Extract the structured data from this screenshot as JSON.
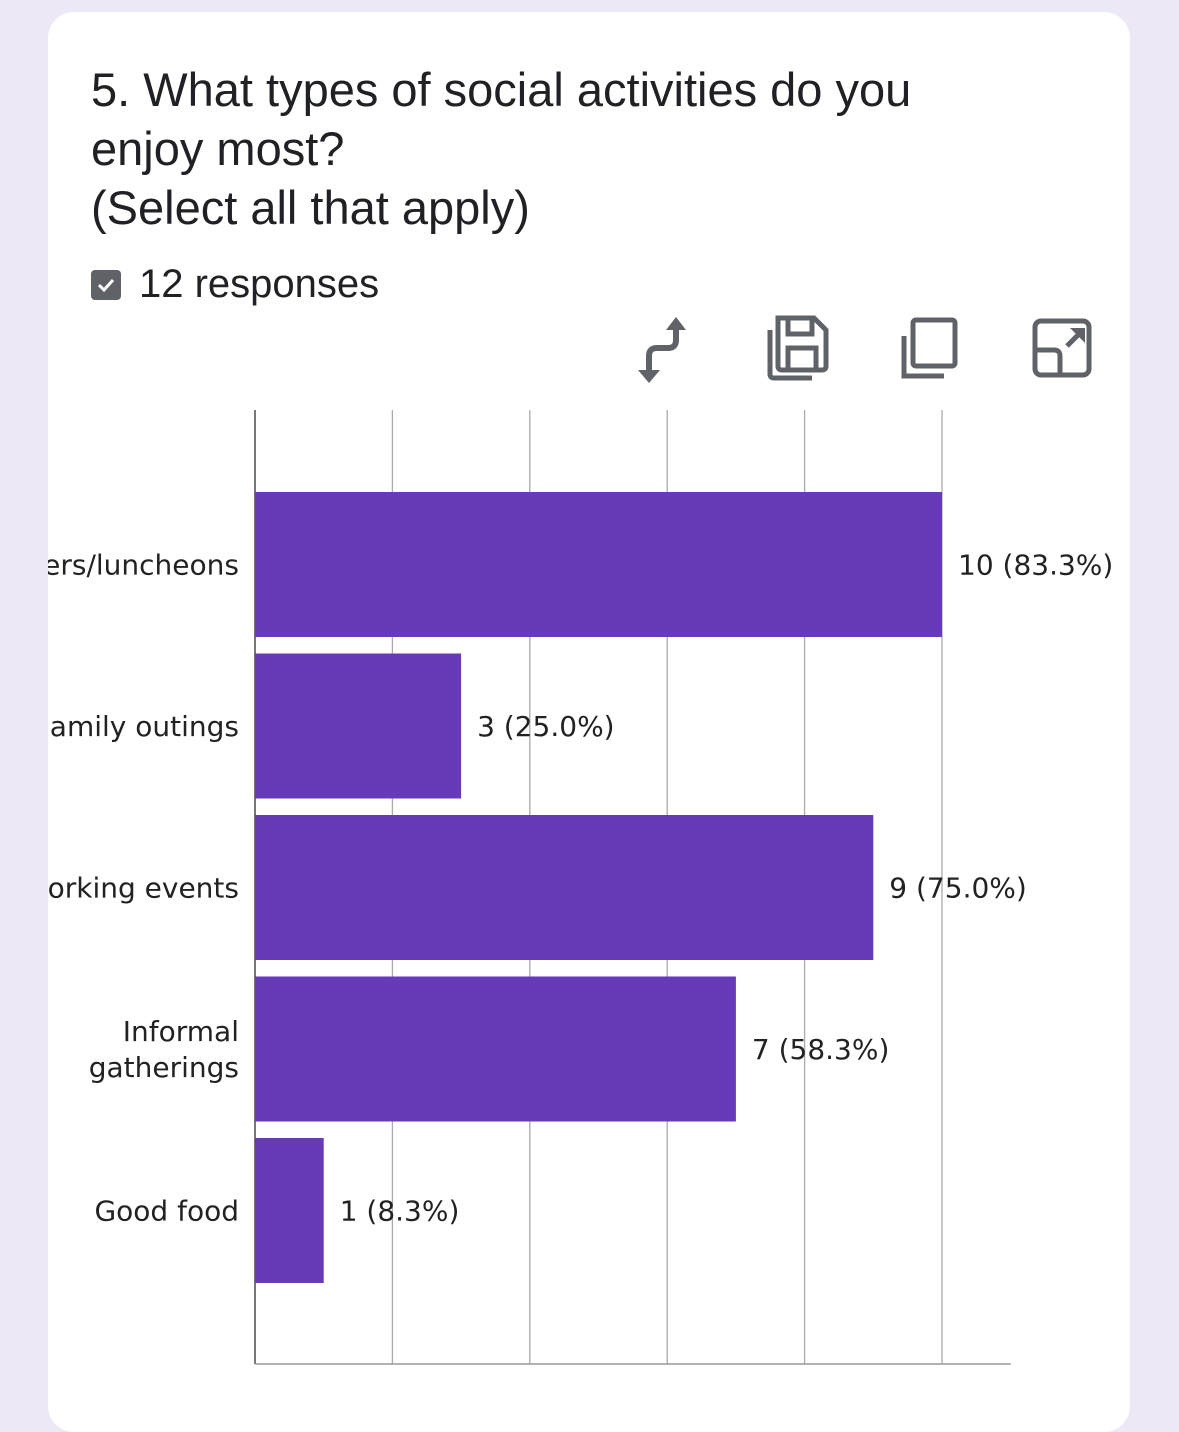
{
  "question": {
    "line1": "5. What types of social activities do you",
    "line2": "enjoy most?",
    "line3": "(Select all that apply)"
  },
  "responses_label": "12 responses",
  "toolbar": [
    "swap-axes-icon",
    "save-icon",
    "copy-icon",
    "expand-icon"
  ],
  "colors": {
    "bar": "#673ab7",
    "background": "#ede8f6"
  },
  "chart_data": {
    "type": "bar",
    "orientation": "horizontal",
    "categories": [
      [
        "ers/luncheons"
      ],
      [
        "amily outings"
      ],
      [
        "orking events"
      ],
      [
        "Informal",
        "gatherings"
      ],
      [
        "Good food"
      ]
    ],
    "values": [
      10,
      3,
      9,
      7,
      1
    ],
    "data_labels": [
      "10 (83.3%)",
      "3 (25.0%)",
      "9 (75.0%)",
      "7 (58.3%)",
      "1 (8.3%)"
    ],
    "xlim": [
      0,
      11
    ],
    "gridlines": [
      0,
      2,
      4,
      6,
      8,
      10
    ],
    "grid": true
  }
}
